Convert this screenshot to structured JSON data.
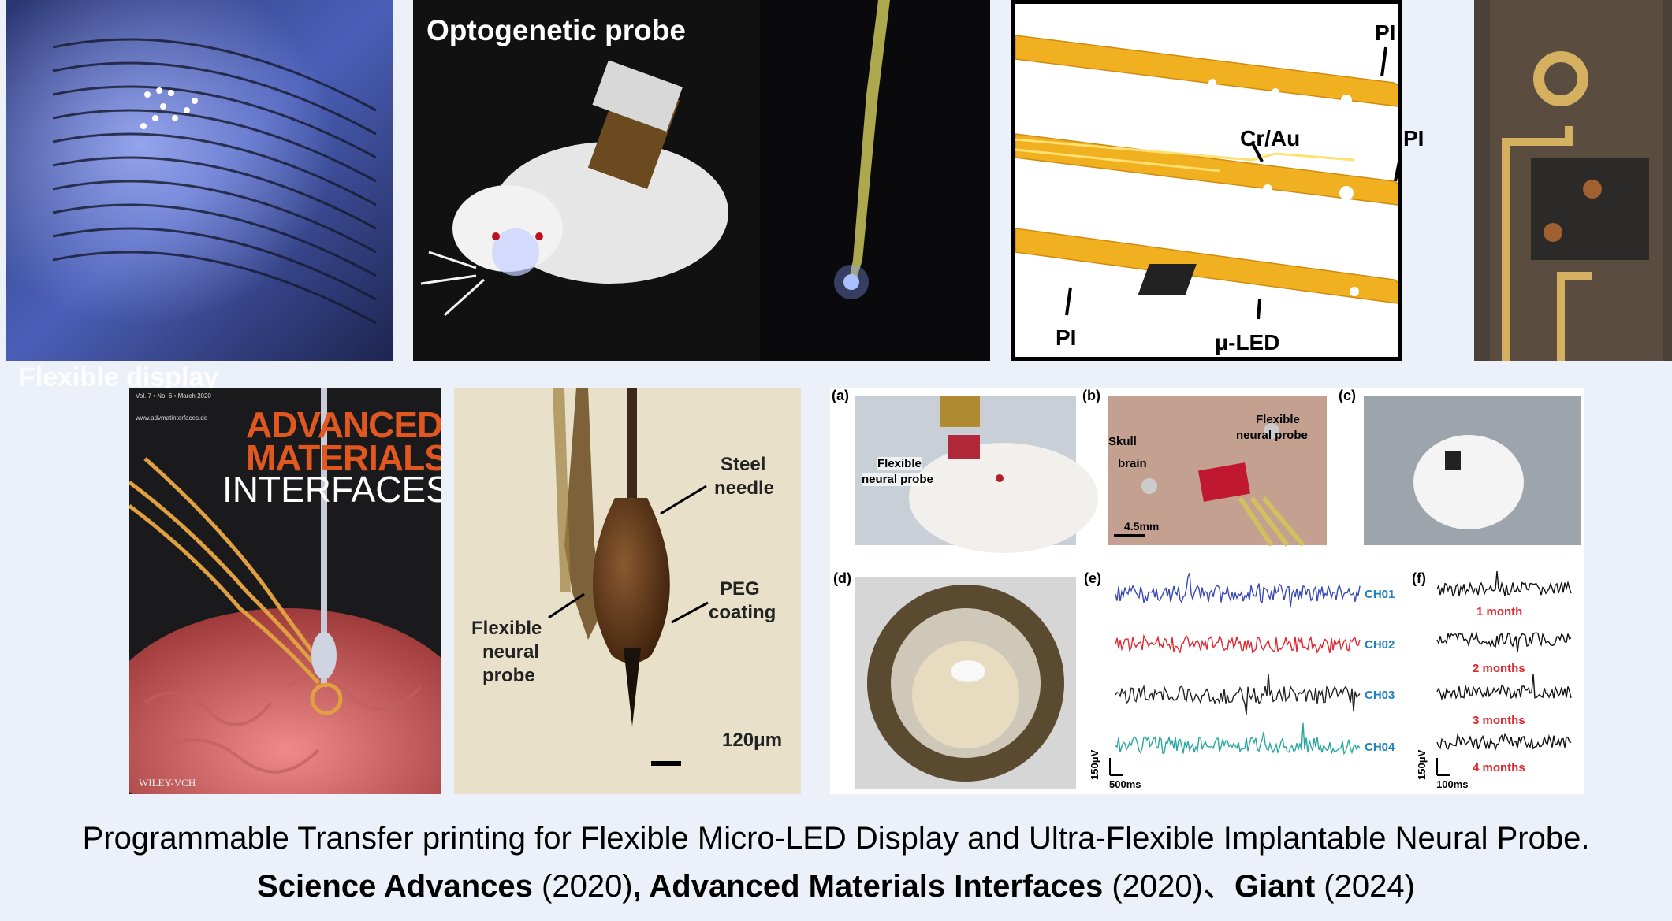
{
  "top_row": {
    "flexible_display_label": "Flexible display",
    "optogenetic_label": "Optogenetic probe",
    "layers": {
      "pi_top": "PI",
      "cr_au": "Cr/Au",
      "pi_middle": "PI",
      "pi_bottom": "PI",
      "mu_led": "μ-LED"
    }
  },
  "journal_cover": {
    "header_text": "Vol. 7 • No. 6 • March 2020",
    "url": "www.advmatinterfaces.de",
    "title_line1": "ADVANCED",
    "title_line2": "MATERIALS",
    "title_line3": "INTERFACES",
    "publisher": "WILEY-VCH"
  },
  "needle_photo": {
    "steel_needle": [
      "Steel",
      "needle"
    ],
    "peg_coating": [
      "PEG",
      "coating"
    ],
    "flexible_probe": [
      "Flexible",
      "neural",
      "probe"
    ],
    "scale_bar": "120μm"
  },
  "figure": {
    "panel_a": "(a)",
    "panel_b": "(b)",
    "panel_c": "(c)",
    "panel_d": "(d)",
    "panel_e": "(e)",
    "panel_f": "(f)",
    "a_label": [
      "Flexible",
      "neural probe"
    ],
    "b_skull": "Skull",
    "b_brain": "brain",
    "b_probe": [
      "Flexible",
      "neural  probe"
    ],
    "b_scale": "4.5mm",
    "channels": [
      "CH01",
      "CH02",
      "CH03",
      "CH04"
    ],
    "channel_colors": [
      "#3848b8",
      "#e02830",
      "#222222",
      "#2aa8a0"
    ],
    "e_scale_v": "150μV",
    "e_scale_t": "500ms",
    "months": [
      "1 month",
      "2 months",
      "3 months",
      "4 months"
    ],
    "f_scale_v": "150μV",
    "f_scale_t": "100ms"
  },
  "caption": {
    "line1": "Programmable Transfer printing for Flexible Micro-LED Display and Ultra-Flexible Implantable Neural Probe.",
    "journal1": "Science Advances",
    "year1": " (2020)",
    "sep1": ", ",
    "journal2": "Advanced Materials Interfaces",
    "year2": " (2020)、",
    "journal3": "Giant",
    "year3": " (2024)"
  }
}
